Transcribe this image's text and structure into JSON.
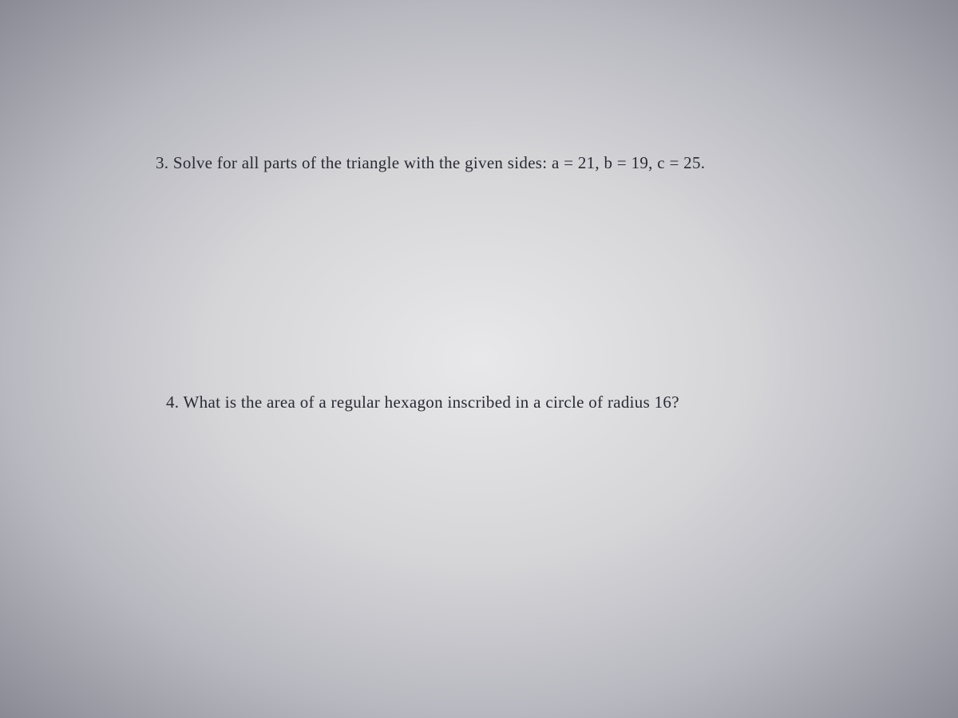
{
  "questions": {
    "q3": {
      "number": "3.",
      "text": "Solve for all parts of the triangle with the given sides: a = 21, b = 19, c = 25."
    },
    "q4": {
      "number": "4.",
      "text": "What is the area of a regular hexagon inscribed in a circle of radius 16?"
    }
  },
  "style": {
    "font_family": "Comic Sans MS",
    "font_size_pt": 16,
    "text_color": "#2a2a35",
    "background_gradient": {
      "center": "#e8e8ea",
      "edge": "#8a8a95"
    }
  }
}
